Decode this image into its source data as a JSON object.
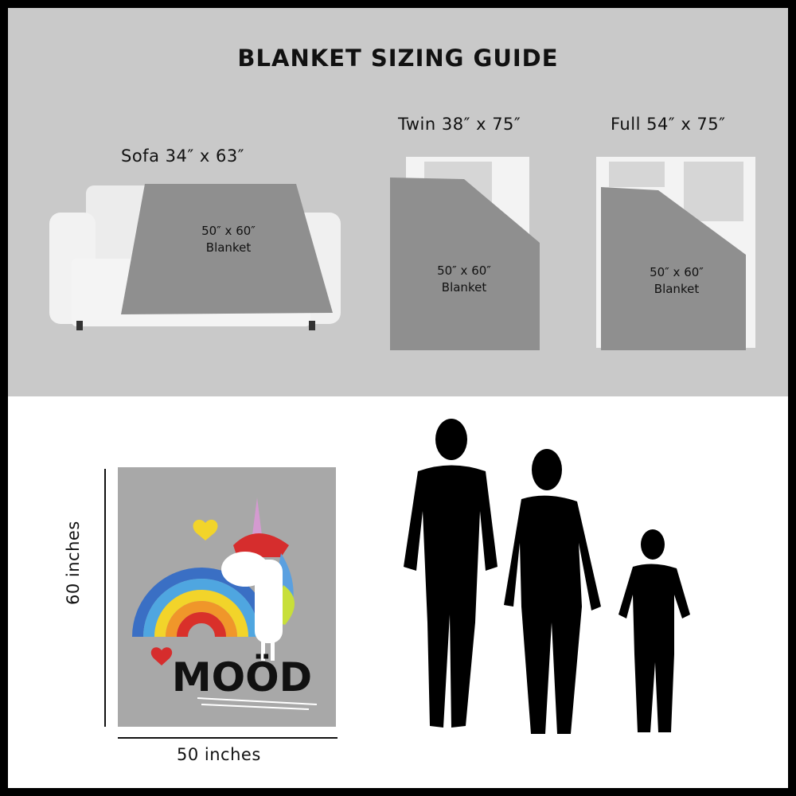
{
  "title": "BLANKET SIZING GUIDE",
  "sizes": [
    {
      "label": "Sofa 34″ x 63″",
      "blanket": "50″ x 60″",
      "blanket_word": "Blanket",
      "furniture": "sofa"
    },
    {
      "label": "Twin 38″ x 75″",
      "blanket": "50″ x 60″",
      "blanket_word": "Blanket",
      "furniture": "twin-bed"
    },
    {
      "label": "Full 54″ x 75″",
      "blanket": "50″ x 60″",
      "blanket_word": "Blanket",
      "furniture": "full-bed"
    }
  ],
  "product": {
    "height_label": "60 inches",
    "width_label": "50 inches",
    "design_text": "MOÖD"
  },
  "silhouettes": [
    "man",
    "woman",
    "child"
  ],
  "colors": {
    "top_background": "#c9c9c9",
    "blanket_gray": "#8f8f8f",
    "frame": "#000000"
  }
}
